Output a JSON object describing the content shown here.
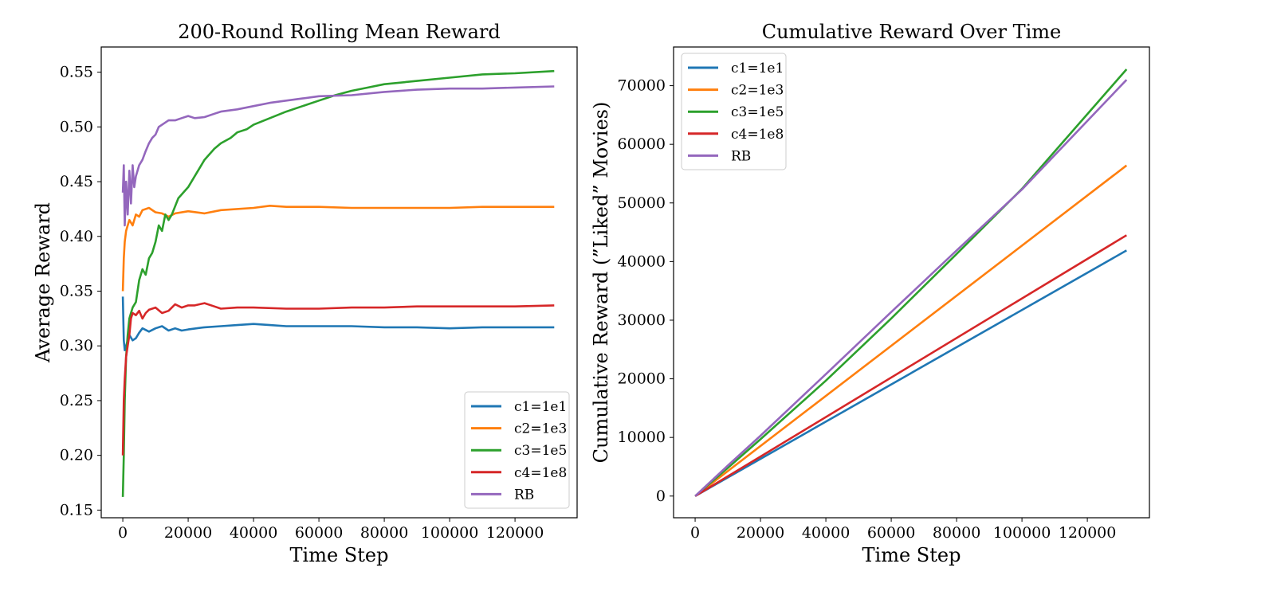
{
  "chart_data": [
    {
      "type": "line",
      "title": "200-Round Rolling Mean Reward",
      "xlabel": "Time Step",
      "ylabel": "Average Reward",
      "xlim": [
        -6600,
        139000
      ],
      "ylim": [
        0.143,
        0.573
      ],
      "xticks": [
        0,
        20000,
        40000,
        60000,
        80000,
        100000,
        120000
      ],
      "yticks": [
        0.15,
        0.2,
        0.25,
        0.3,
        0.35,
        0.4,
        0.45,
        0.5,
        0.55
      ],
      "ytick_labels": [
        "0.15",
        "0.20",
        "0.25",
        "0.30",
        "0.35",
        "0.40",
        "0.45",
        "0.50",
        "0.55"
      ],
      "legend": "bottom-right",
      "grid": false,
      "series": [
        {
          "name": "c1=1e1",
          "color": "#1f77b4",
          "x": [
            0,
            300,
            600,
            1000,
            1500,
            2000,
            3000,
            4000,
            5000,
            6000,
            8000,
            10000,
            12000,
            14000,
            16000,
            18000,
            20000,
            25000,
            30000,
            35000,
            40000,
            45000,
            50000,
            60000,
            70000,
            80000,
            90000,
            100000,
            110000,
            120000,
            132000
          ],
          "y": [
            0.345,
            0.305,
            0.296,
            0.3,
            0.305,
            0.31,
            0.305,
            0.307,
            0.312,
            0.316,
            0.313,
            0.316,
            0.318,
            0.314,
            0.316,
            0.314,
            0.315,
            0.317,
            0.318,
            0.319,
            0.32,
            0.319,
            0.318,
            0.318,
            0.318,
            0.317,
            0.317,
            0.316,
            0.317,
            0.317,
            0.317
          ]
        },
        {
          "name": "c2=1e3",
          "color": "#ff7f0e",
          "x": [
            0,
            300,
            600,
            1000,
            1500,
            2000,
            3000,
            4000,
            5000,
            6000,
            8000,
            10000,
            12000,
            14000,
            16000,
            20000,
            25000,
            30000,
            40000,
            45000,
            50000,
            60000,
            70000,
            80000,
            90000,
            100000,
            110000,
            120000,
            132000
          ],
          "y": [
            0.35,
            0.38,
            0.395,
            0.405,
            0.41,
            0.415,
            0.41,
            0.42,
            0.418,
            0.424,
            0.426,
            0.422,
            0.421,
            0.418,
            0.421,
            0.423,
            0.421,
            0.424,
            0.426,
            0.428,
            0.427,
            0.427,
            0.426,
            0.426,
            0.426,
            0.426,
            0.427,
            0.427,
            0.427
          ]
        },
        {
          "name": "c3=1e5",
          "color": "#2ca02c",
          "x": [
            0,
            300,
            600,
            1000,
            1500,
            2000,
            2500,
            3000,
            4000,
            5000,
            6000,
            7000,
            8000,
            9000,
            10000,
            11000,
            12000,
            13000,
            14000,
            15000,
            17000,
            20000,
            22000,
            25000,
            28000,
            30000,
            33000,
            35000,
            38000,
            40000,
            45000,
            50000,
            55000,
            60000,
            65000,
            70000,
            75000,
            80000,
            90000,
            100000,
            110000,
            120000,
            132000
          ],
          "y": [
            0.162,
            0.2,
            0.25,
            0.29,
            0.31,
            0.325,
            0.33,
            0.335,
            0.34,
            0.36,
            0.37,
            0.365,
            0.38,
            0.385,
            0.395,
            0.41,
            0.405,
            0.42,
            0.415,
            0.42,
            0.435,
            0.445,
            0.455,
            0.47,
            0.48,
            0.485,
            0.49,
            0.495,
            0.498,
            0.502,
            0.508,
            0.514,
            0.519,
            0.524,
            0.529,
            0.533,
            0.536,
            0.539,
            0.542,
            0.545,
            0.548,
            0.549,
            0.551
          ]
        },
        {
          "name": "c4=1e8",
          "color": "#d62728",
          "x": [
            0,
            300,
            600,
            1000,
            1500,
            2000,
            2500,
            3000,
            4000,
            5000,
            6000,
            7000,
            8000,
            10000,
            12000,
            14000,
            16000,
            18000,
            20000,
            22000,
            25000,
            28000,
            30000,
            35000,
            40000,
            50000,
            60000,
            70000,
            80000,
            90000,
            100000,
            110000,
            120000,
            132000
          ],
          "y": [
            0.2,
            0.25,
            0.27,
            0.29,
            0.3,
            0.31,
            0.325,
            0.33,
            0.328,
            0.332,
            0.325,
            0.33,
            0.333,
            0.335,
            0.33,
            0.332,
            0.338,
            0.335,
            0.337,
            0.337,
            0.339,
            0.336,
            0.334,
            0.335,
            0.335,
            0.334,
            0.334,
            0.335,
            0.335,
            0.336,
            0.336,
            0.336,
            0.336,
            0.337
          ]
        },
        {
          "name": "RB",
          "color": "#9467bd",
          "x": [
            0,
            300,
            600,
            1000,
            1500,
            2000,
            2500,
            3000,
            3500,
            4000,
            5000,
            6000,
            7000,
            8000,
            9000,
            10000,
            11000,
            12000,
            14000,
            16000,
            18000,
            20000,
            22000,
            25000,
            28000,
            30000,
            35000,
            40000,
            45000,
            50000,
            55000,
            60000,
            70000,
            80000,
            90000,
            100000,
            110000,
            120000,
            132000
          ],
          "y": [
            0.44,
            0.465,
            0.41,
            0.45,
            0.42,
            0.46,
            0.43,
            0.465,
            0.445,
            0.455,
            0.465,
            0.47,
            0.478,
            0.485,
            0.49,
            0.493,
            0.5,
            0.502,
            0.506,
            0.506,
            0.508,
            0.51,
            0.508,
            0.509,
            0.512,
            0.514,
            0.516,
            0.519,
            0.522,
            0.524,
            0.526,
            0.528,
            0.529,
            0.532,
            0.534,
            0.535,
            0.535,
            0.536,
            0.537
          ]
        }
      ]
    },
    {
      "type": "line",
      "title": "Cumulative Reward Over Time",
      "xlabel": "Time Step",
      "ylabel": "Cumulative Reward (”Liked” Movies)",
      "xlim": [
        -6600,
        139000
      ],
      "ylim": [
        -3700,
        76600
      ],
      "xticks": [
        0,
        20000,
        40000,
        60000,
        80000,
        100000,
        120000
      ],
      "yticks": [
        0,
        10000,
        20000,
        30000,
        40000,
        50000,
        60000,
        70000
      ],
      "ytick_labels": [
        "0",
        "10000",
        "20000",
        "30000",
        "40000",
        "50000",
        "60000",
        "70000"
      ],
      "legend": "top-left",
      "grid": false,
      "series": [
        {
          "name": "c1=1e1",
          "color": "#1f77b4",
          "x": [
            0,
            132000
          ],
          "y": [
            0,
            41900
          ]
        },
        {
          "name": "c2=1e3",
          "color": "#ff7f0e",
          "x": [
            0,
            132000
          ],
          "y": [
            0,
            56400
          ]
        },
        {
          "name": "c3=1e5",
          "color": "#2ca02c",
          "x": [
            0,
            10000,
            20000,
            40000,
            60000,
            80000,
            100000,
            132000
          ],
          "y": [
            0,
            4800,
            9700,
            19700,
            30300,
            41300,
            52400,
            72800
          ]
        },
        {
          "name": "c4=1e8",
          "color": "#d62728",
          "x": [
            0,
            132000
          ],
          "y": [
            0,
            44500
          ]
        },
        {
          "name": "RB",
          "color": "#9467bd",
          "x": [
            0,
            10000,
            20000,
            40000,
            60000,
            80000,
            100000,
            132000
          ],
          "y": [
            0,
            5200,
            10300,
            20800,
            31400,
            41900,
            52300,
            71000
          ]
        }
      ]
    }
  ]
}
